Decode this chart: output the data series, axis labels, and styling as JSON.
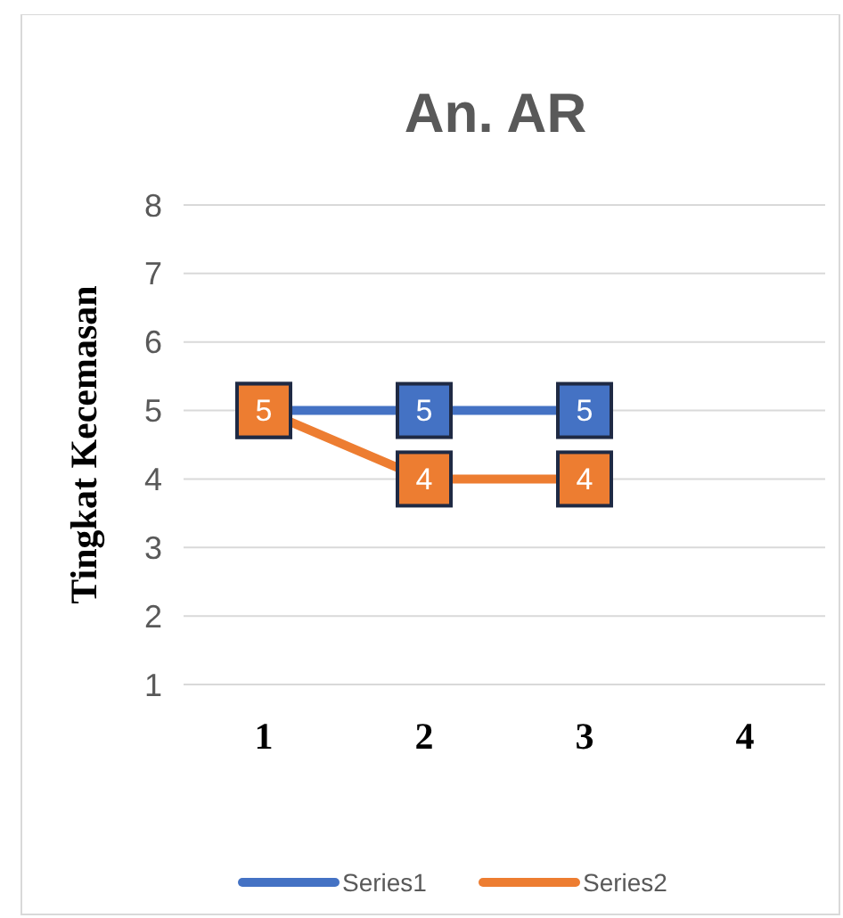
{
  "chart_data": {
    "type": "line",
    "title": "An. AR",
    "ylabel": "Tingkat Kecemasan",
    "categories": [
      "1",
      "2",
      "3",
      "4"
    ],
    "series": [
      {
        "name": "Series1",
        "color": "#4472c4",
        "values": [
          5,
          5,
          5,
          null
        ],
        "value_labels": [
          null,
          "5",
          "5",
          null
        ]
      },
      {
        "name": "Series2",
        "color": "#ed7d31",
        "values": [
          5,
          4,
          4,
          null
        ],
        "value_labels": [
          "5",
          "4",
          "4",
          null
        ]
      }
    ],
    "ylim": [
      1,
      8
    ],
    "yticks": [
      1,
      2,
      3,
      4,
      5,
      6,
      7,
      8
    ],
    "grid": "y",
    "legend": "bottom",
    "marker": "square"
  }
}
